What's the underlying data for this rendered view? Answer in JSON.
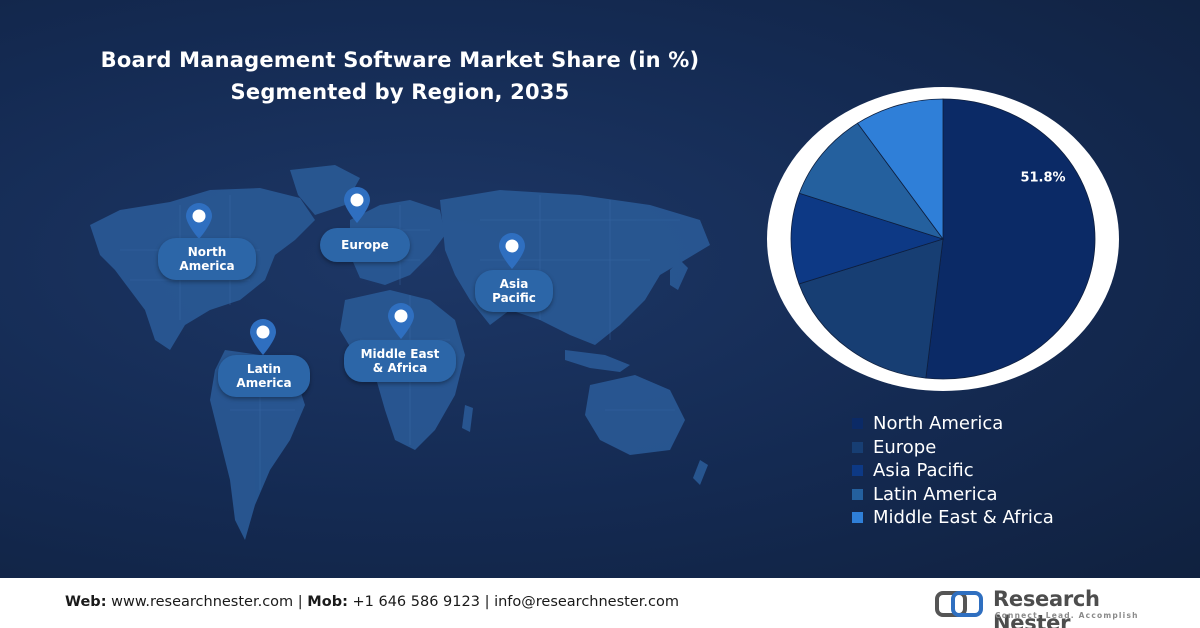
{
  "title_line1": "Board Management Software Market Share (in %)",
  "title_line2": "Segmented by Region, 2035",
  "map_labels": {
    "north_america": [
      "North",
      "America"
    ],
    "europe": [
      "Europe"
    ],
    "asia_pacific": [
      "Asia",
      "Pacific"
    ],
    "latin_america": [
      "Latin",
      "America"
    ],
    "middle_east_africa": [
      "Middle East",
      "& Africa"
    ]
  },
  "chart_data": {
    "type": "pie",
    "title": "Board Management Software Market Share (in %)",
    "subtitle": "Segmented by Region, 2035",
    "categories": [
      "North America",
      "Europe",
      "Asia Pacific",
      "Latin America",
      "Middle East & Africa"
    ],
    "values": [
      51.8,
      18.0,
      10.5,
      10.2,
      9.5
    ],
    "colors": [
      "#0b2a66",
      "#173e73",
      "#0d3985",
      "#24609e",
      "#2f7fd8"
    ],
    "data_labels": [
      "51.8%",
      "",
      "",
      "",
      ""
    ],
    "legend_placement": "bottom-right"
  },
  "footer": {
    "web_label": "Web:",
    "web": "www.researchnester.com",
    "mob_label": "Mob:",
    "mob": "+1 646 586 9123",
    "email": "info@researchnester.com",
    "separator": "|"
  },
  "logo": {
    "name": "Research Nester",
    "tagline": "Connect. Lead. Accomplish"
  }
}
